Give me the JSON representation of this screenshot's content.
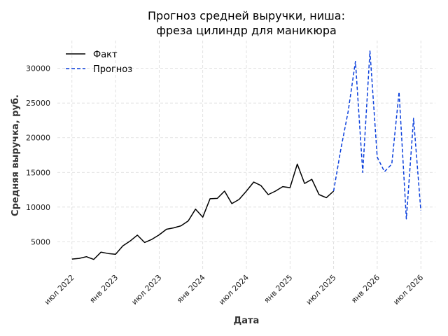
{
  "chart_data": {
    "type": "line",
    "title": "Прогноз средней выручки, ниша:\nфреза цилиндр для маникюра",
    "xlabel": "Дата",
    "ylabel": "Средняя выручка, руб.",
    "grid": true,
    "legend_position": "top-left",
    "x_ticks": [
      {
        "label": "июл 2022",
        "date": "2022-07"
      },
      {
        "label": "янв 2023",
        "date": "2023-01"
      },
      {
        "label": "июл 2023",
        "date": "2023-07"
      },
      {
        "label": "янв 2024",
        "date": "2024-01"
      },
      {
        "label": "июл 2024",
        "date": "2024-07"
      },
      {
        "label": "янв 2025",
        "date": "2025-01"
      },
      {
        "label": "июл 2025",
        "date": "2025-07"
      },
      {
        "label": "янв 2026",
        "date": "2026-01"
      },
      {
        "label": "июл 2026",
        "date": "2026-07"
      }
    ],
    "y_ticks": [
      5000,
      10000,
      15000,
      20000,
      25000,
      30000
    ],
    "xlim": [
      "2022-05",
      "2026-09"
    ],
    "ylim": [
      1000,
      34000
    ],
    "series": [
      {
        "name": "Факт",
        "color": "#000000",
        "style": "solid",
        "points": [
          [
            "2022-07",
            2500
          ],
          [
            "2022-08",
            2600
          ],
          [
            "2022-09",
            2850
          ],
          [
            "2022-10",
            2450
          ],
          [
            "2022-11",
            3500
          ],
          [
            "2022-12",
            3300
          ],
          [
            "2023-01",
            3200
          ],
          [
            "2023-02",
            4400
          ],
          [
            "2023-03",
            5100
          ],
          [
            "2023-04",
            5950
          ],
          [
            "2023-05",
            4900
          ],
          [
            "2023-06",
            5350
          ],
          [
            "2023-07",
            6000
          ],
          [
            "2023-08",
            6800
          ],
          [
            "2023-09",
            7000
          ],
          [
            "2023-10",
            7300
          ],
          [
            "2023-11",
            8000
          ],
          [
            "2023-12",
            9700
          ],
          [
            "2024-01",
            8550
          ],
          [
            "2024-02",
            11200
          ],
          [
            "2024-03",
            11250
          ],
          [
            "2024-04",
            12300
          ],
          [
            "2024-05",
            10500
          ],
          [
            "2024-06",
            11100
          ],
          [
            "2024-07",
            12300
          ],
          [
            "2024-08",
            13600
          ],
          [
            "2024-09",
            13100
          ],
          [
            "2024-10",
            11800
          ],
          [
            "2024-11",
            12300
          ],
          [
            "2024-12",
            12950
          ],
          [
            "2025-01",
            12800
          ],
          [
            "2025-02",
            16200
          ],
          [
            "2025-03",
            13400
          ],
          [
            "2025-04",
            14000
          ],
          [
            "2025-05",
            11800
          ],
          [
            "2025-06",
            11350
          ],
          [
            "2025-07",
            12300
          ]
        ]
      },
      {
        "name": "Прогноз",
        "color": "#0a3fdc",
        "style": "dashed",
        "points": [
          [
            "2025-07",
            12300
          ],
          [
            "2025-08",
            18400
          ],
          [
            "2025-09",
            23800
          ],
          [
            "2025-10",
            31000
          ],
          [
            "2025-11",
            15000
          ],
          [
            "2025-12",
            32500
          ],
          [
            "2026-01",
            17200
          ],
          [
            "2026-02",
            15100
          ],
          [
            "2026-03",
            16200
          ],
          [
            "2026-04",
            26600
          ],
          [
            "2026-05",
            8300
          ],
          [
            "2026-06",
            22800
          ],
          [
            "2026-07",
            9500
          ]
        ]
      }
    ]
  }
}
